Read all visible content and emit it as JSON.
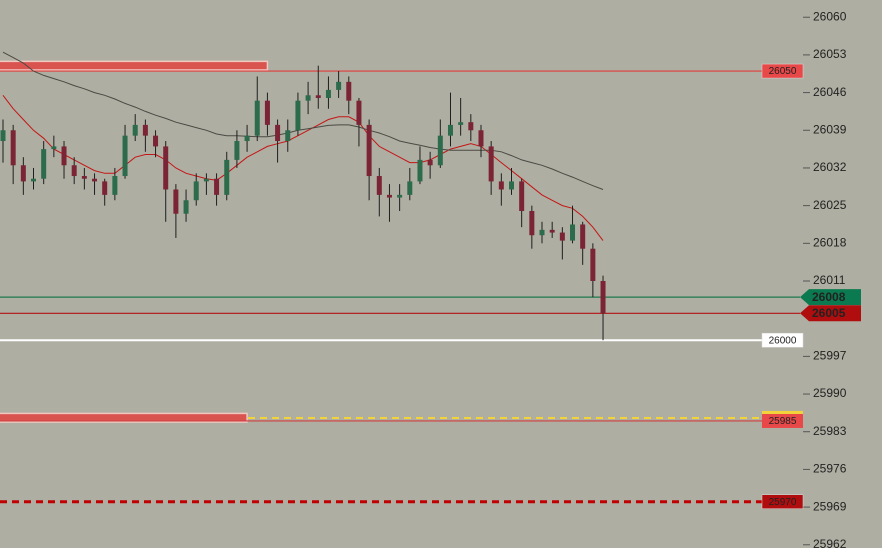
{
  "chart_data": {
    "type": "candlestick",
    "ylim": [
      25961.4,
      26063.2
    ],
    "yticks": [
      26060,
      26053,
      26046,
      26039,
      26032,
      26025,
      26018,
      26011,
      25997,
      25990,
      25983,
      25976,
      25969,
      25962
    ],
    "bull_color": "#2c6b4c",
    "bear_color": "#7a2436",
    "wick_color": "#1e1e1e",
    "candles": [
      [
        26037,
        26041,
        26033,
        26039
      ],
      [
        26039,
        26040,
        26029,
        26032.5
      ],
      [
        26032.5,
        26034,
        26027,
        26029.5
      ],
      [
        26029.5,
        26032,
        26028,
        26030
      ],
      [
        26030,
        26037,
        26029,
        26035.5
      ],
      [
        26035.5,
        26038,
        26034,
        26036
      ],
      [
        26036,
        26037,
        26030,
        26032.5
      ],
      [
        26032.5,
        26034,
        26029,
        26030.5
      ],
      [
        26030.5,
        26032,
        26028,
        26030
      ],
      [
        26030,
        26031,
        26027,
        26029.5
      ],
      [
        26029.5,
        26030,
        26025,
        26027
      ],
      [
        26027,
        26032,
        26026,
        26030.5
      ],
      [
        26030.5,
        26040,
        26030,
        26038
      ],
      [
        26038,
        26042,
        26037,
        26040
      ],
      [
        26040,
        26041,
        26035,
        26038
      ],
      [
        26038,
        26039,
        26034,
        26036
      ],
      [
        26036,
        26037,
        26022,
        26028
      ],
      [
        26028,
        26029,
        26019,
        26023.5
      ],
      [
        26023.5,
        26028,
        26022,
        26026
      ],
      [
        26026,
        26031,
        26025,
        26029.5
      ],
      [
        26029.5,
        26031,
        26027,
        26030
      ],
      [
        26030,
        26031,
        26025,
        26027
      ],
      [
        26027,
        26035,
        26026,
        26033.5
      ],
      [
        26033.5,
        26039,
        26032,
        26037
      ],
      [
        26037,
        26040,
        26035,
        26038
      ],
      [
        26038,
        26049,
        26037,
        26044.5
      ],
      [
        26044.5,
        26046,
        26038,
        26040
      ],
      [
        26040,
        26041,
        26033,
        26037
      ],
      [
        26037,
        26041,
        26035,
        26039
      ],
      [
        26039,
        26046,
        26038,
        26044.5
      ],
      [
        26044.5,
        26048,
        26042,
        26045.5
      ],
      [
        26045.5,
        26051,
        26043,
        26045
      ],
      [
        26045,
        26049,
        26043,
        26046.5
      ],
      [
        26046.5,
        26050,
        26045,
        26048
      ],
      [
        26048,
        26049,
        26042,
        26044.5
      ],
      [
        26044.5,
        26045,
        26036,
        26040
      ],
      [
        26040,
        26041,
        26026,
        26030.5
      ],
      [
        26030.5,
        26032,
        26023,
        26027
      ],
      [
        26027,
        26029,
        26022,
        26026.5
      ],
      [
        26026.5,
        26029,
        26024,
        26027
      ],
      [
        26027,
        26032,
        26026,
        26029.5
      ],
      [
        26029.5,
        26036,
        26029,
        26033.5
      ],
      [
        26033.5,
        26035,
        26030,
        26032.5
      ],
      [
        26032.5,
        26041,
        26032,
        26038
      ],
      [
        26038,
        26046,
        26036,
        26040
      ],
      [
        26040,
        26045,
        26038,
        26040.5
      ],
      [
        26040.5,
        26042,
        26037,
        26039
      ],
      [
        26039,
        26040,
        26034,
        26036
      ],
      [
        26036,
        26037,
        26027,
        26029.5
      ],
      [
        26029.5,
        26031,
        26025,
        26028
      ],
      [
        26028,
        26032,
        26027,
        26029.5
      ],
      [
        26029.5,
        26030,
        26021,
        26024
      ],
      [
        26024,
        26025,
        26017,
        26019.5
      ],
      [
        26019.5,
        26022,
        26018,
        26020.5
      ],
      [
        26020.5,
        26022,
        26019,
        26020
      ],
      [
        26020,
        26021,
        26015,
        26018.5
      ],
      [
        26018.5,
        26025,
        26018,
        26021.5
      ],
      [
        26021.5,
        26022,
        26014,
        26017
      ],
      [
        26017,
        26018,
        26008,
        26011
      ],
      [
        26011,
        26012,
        26000,
        26005
      ]
    ],
    "series": [
      {
        "color": "#c41616",
        "values": [
          26045.5,
          26043,
          26041,
          26039,
          26037.5,
          26035.5,
          26034.5,
          26033.5,
          26032.5,
          26031.5,
          26031,
          26031,
          26032.5,
          26034,
          26034.5,
          26034.5,
          26033.5,
          26032,
          26031,
          26030.5,
          26030,
          26029.7,
          26031,
          26032.5,
          26034,
          26035,
          26036,
          26036.5,
          26037,
          26038,
          26039,
          26040,
          26041,
          26041.5,
          26041.5,
          26040.5,
          26038,
          26036,
          26035,
          26034,
          26033,
          26033,
          26033.5,
          26034.5,
          26035.5,
          26036,
          26036.5,
          26036,
          26034.5,
          26033,
          26031.5,
          26030,
          26028.5,
          26027,
          26026,
          26025,
          26024.5,
          26023,
          26021,
          26018.5
        ]
      },
      {
        "color": "#4a4a44",
        "values": [
          26053.5,
          26052.5,
          26051.5,
          26050,
          26049.2,
          26048.6,
          26048,
          26047.3,
          26046.7,
          26046,
          26045.5,
          26044.8,
          26044,
          26043.3,
          26042.5,
          26041.8,
          26041.2,
          26040.5,
          26040,
          26039.5,
          26039,
          26038.3,
          26038,
          26038,
          26037.9,
          26037.8,
          26037.8,
          26038.1,
          26038.5,
          26039,
          26039.3,
          26039.6,
          26039.9,
          26040,
          26040,
          26039.6,
          26039,
          26038.5,
          26037.8,
          26037,
          26036.6,
          26036.2,
          26035.8,
          26035.5,
          26035.3,
          26035.3,
          26035.3,
          26035.3,
          26035.3,
          26035,
          26034.3,
          26033.5,
          26033,
          26032.5,
          26031.8,
          26031,
          26030.3,
          26029.5,
          26028.7,
          26028
        ]
      }
    ],
    "zones": [
      {
        "from": 26050.2,
        "to": 26051.8,
        "until": 26,
        "color": "#d9534f"
      },
      {
        "from": 25984.8,
        "to": 25986.4,
        "until": 24,
        "color": "#d9534f"
      }
    ],
    "levels": [
      {
        "value": 26050,
        "color": "#e03c3c",
        "dashed": false,
        "badge": "plot",
        "badge_color": "#e84848",
        "text_color": "#222"
      },
      {
        "value": 26008,
        "color": "#1d7a4e",
        "dashed": false,
        "badge": "axis",
        "badge_color": "#0b7a50",
        "text_color": "#fff"
      },
      {
        "value": 26005,
        "color": "#b01212",
        "dashed": false,
        "badge": "axis",
        "badge_color": "#b00e0e",
        "text_color": "#fff"
      },
      {
        "value": 26000,
        "color": "#ffffff",
        "dashed": false,
        "badge": "plot",
        "badge_color": "#ffffff",
        "text_color": "#222"
      },
      {
        "value": 25985,
        "color": "#d04040",
        "dashed": false,
        "badge": "plot",
        "badge_color": "#e84848",
        "text_color": "#222",
        "secondary_color": "#f2d43a"
      },
      {
        "value": 25970,
        "color": "#c00000",
        "dashed": true,
        "badge": "plot",
        "badge_color": "#b00e0e",
        "text_color": "#fff"
      }
    ]
  }
}
